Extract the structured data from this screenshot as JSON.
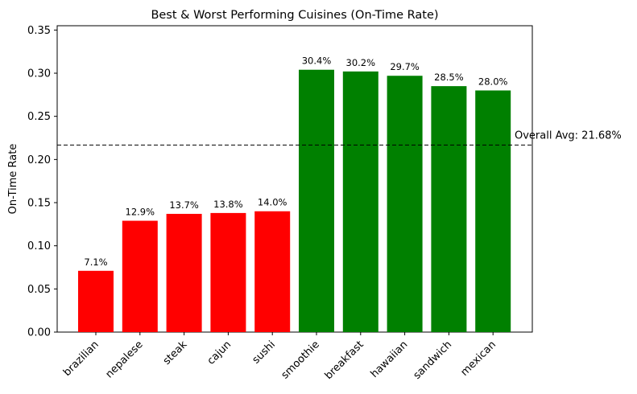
{
  "chart_data": {
    "type": "bar",
    "title": "Best & Worst Performing Cuisines (On-Time Rate)",
    "xlabel": "",
    "ylabel": "On-Time Rate",
    "ylim": [
      0,
      0.355
    ],
    "yticks": [
      "0.00",
      "0.05",
      "0.10",
      "0.15",
      "0.20",
      "0.25",
      "0.30",
      "0.35"
    ],
    "grid": false,
    "categories": [
      "brazilian",
      "nepalese",
      "steak",
      "cajun",
      "sushi",
      "smoothie",
      "breakfast",
      "hawaiian",
      "sandwich",
      "mexican"
    ],
    "values": [
      0.071,
      0.129,
      0.137,
      0.138,
      0.14,
      0.304,
      0.302,
      0.297,
      0.285,
      0.28
    ],
    "data_labels": [
      "7.1%",
      "12.9%",
      "13.7%",
      "13.8%",
      "14.0%",
      "30.4%",
      "30.2%",
      "29.7%",
      "28.5%",
      "28.0%"
    ],
    "bar_colors": [
      "#ff0000",
      "#ff0000",
      "#ff0000",
      "#ff0000",
      "#ff0000",
      "#008000",
      "#008000",
      "#008000",
      "#008000",
      "#008000"
    ],
    "reference_line": {
      "value": 0.2168,
      "label": "Overall Avg: 21.68%",
      "style": "dashed",
      "color": "#000000"
    }
  }
}
